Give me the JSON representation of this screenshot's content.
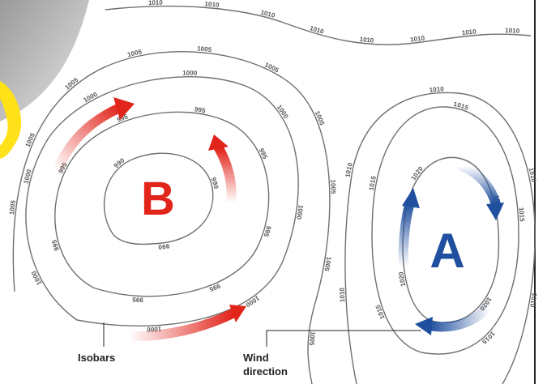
{
  "pressure_centers": {
    "low": {
      "letter": "B",
      "color": "#e1251b"
    },
    "high": {
      "letter": "A",
      "color": "#1f4f9e"
    }
  },
  "callouts": {
    "isobars": [
      "Isobars"
    ],
    "wind": [
      "Wind",
      "direction"
    ]
  },
  "isobar_values": {
    "top_line": [
      "1010",
      "1010",
      "1010",
      "1010",
      "1010",
      "1010",
      "1010",
      "1010"
    ],
    "low_outer": [
      "1005",
      "1005",
      "1005",
      "1005",
      "1005",
      "1005",
      "1005",
      "1005",
      "1005",
      "1005"
    ],
    "low_mid": [
      "1000",
      "1000",
      "1000",
      "1000",
      "1000",
      "1000",
      "1000",
      "1000"
    ],
    "low_inner": [
      "995",
      "995",
      "995",
      "995",
      "995",
      "995",
      "995",
      "995"
    ],
    "low_core": [
      "990",
      "990",
      "990"
    ],
    "high_outer": [
      "1010",
      "1010",
      "1010",
      "1010",
      "1010"
    ],
    "high_mid": [
      "1015",
      "1015",
      "1015",
      "1015",
      "1015"
    ],
    "high_inner": [
      "1020",
      "1020",
      "1020",
      "1020"
    ]
  },
  "colors": {
    "isobar": "#6f6f6f",
    "low_arrow": "#e1251b",
    "high_arrow": "#1f4f9e",
    "frame_gray": "#c8c8c8",
    "frame_yellow": "#ffe11a"
  }
}
